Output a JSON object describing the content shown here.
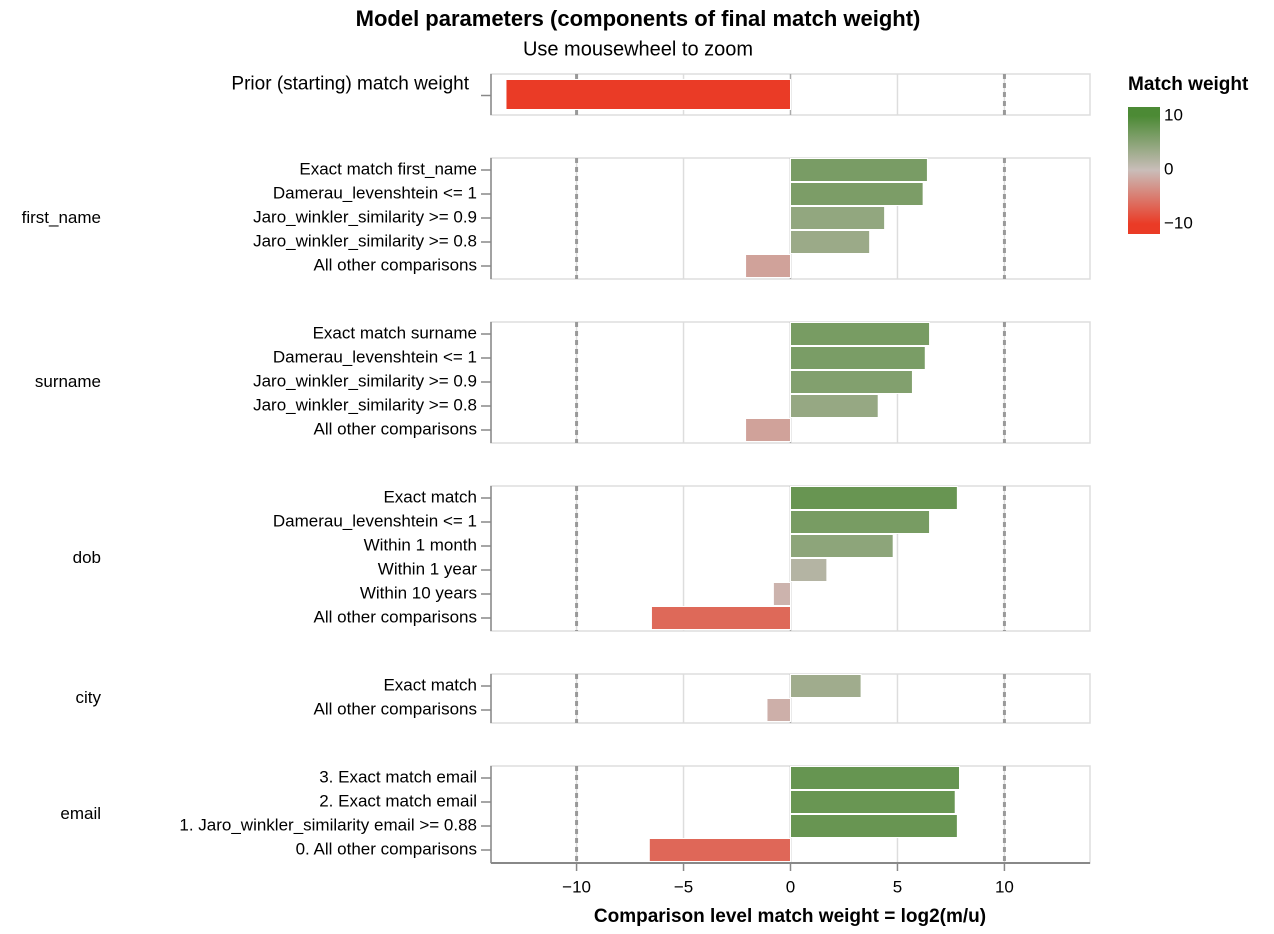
{
  "chart_data": {
    "type": "bar",
    "title": "Model parameters (components of final match weight)",
    "subtitle": "Use mousewheel to zoom",
    "x_label": "Comparison level match weight = log2(m/u)",
    "xlim": [
      -14,
      14
    ],
    "xticks": [
      {
        "value": -10,
        "label": "−10"
      },
      {
        "value": -5,
        "label": "−5"
      },
      0,
      5,
      10
    ],
    "reference_lines": [
      -10,
      10
    ],
    "grid": true,
    "legend": {
      "title": "Match weight",
      "position": "right",
      "ticks": [
        10,
        0,
        {
          "value": -10,
          "label": "−10"
        }
      ]
    },
    "color_scale": {
      "domain": [
        -10,
        0,
        10
      ],
      "colors": [
        "#ea3b26",
        "#c9bdb9",
        "#4c8a35"
      ]
    },
    "facets": [
      {
        "categories": [
          "Prior (starting) match weight"
        ],
        "values": [
          -13.3
        ]
      },
      {
        "name": "first_name",
        "categories": [
          "Exact match first_name",
          "Damerau_levenshtein <= 1",
          "Jaro_winkler_similarity >= 0.9",
          "Jaro_winkler_similarity >= 0.8",
          "All other comparisons"
        ],
        "values": [
          6.4,
          6.2,
          4.4,
          3.7,
          -2.1
        ]
      },
      {
        "name": "surname",
        "categories": [
          "Exact match surname",
          "Damerau_levenshtein <= 1",
          "Jaro_winkler_similarity >= 0.9",
          "Jaro_winkler_similarity >= 0.8",
          "All other comparisons"
        ],
        "values": [
          6.5,
          6.3,
          5.7,
          4.1,
          -2.1
        ]
      },
      {
        "name": "dob",
        "categories": [
          "Exact match",
          "Damerau_levenshtein <= 1",
          "Within 1 month",
          "Within 1 year",
          "Within 10 years",
          "All other comparisons"
        ],
        "values": [
          7.8,
          6.5,
          4.8,
          1.7,
          -0.8,
          -6.5
        ]
      },
      {
        "name": "city",
        "categories": [
          "Exact match",
          "All other comparisons"
        ],
        "values": [
          3.3,
          -1.1
        ]
      },
      {
        "name": "email",
        "categories": [
          "3. Exact match email",
          "2. Exact match email",
          "1. Jaro_winkler_similarity email >= 0.88",
          "0. All other comparisons"
        ],
        "values": [
          7.9,
          7.7,
          7.8,
          -6.6
        ]
      }
    ]
  }
}
